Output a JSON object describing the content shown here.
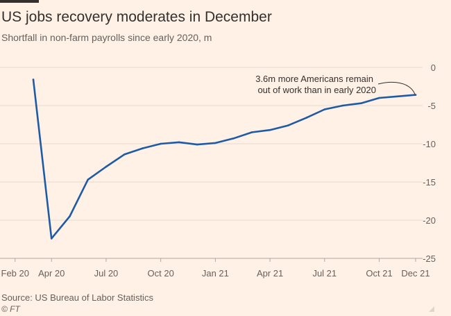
{
  "header": {
    "title": "US jobs recovery moderates in December",
    "subtitle": "Shortfall in non-farm payrolls since early 2020, m"
  },
  "footer": {
    "source": "Source: US Bureau of Labor Statistics",
    "credit": "© FT"
  },
  "annotation": {
    "line1": "3.6m more Americans remain",
    "line2": "out of work than in early 2020"
  },
  "colors": {
    "background": "#fff1e5",
    "line": "#1f5aa6",
    "grid": "#e6d9ce",
    "text": "#33302e",
    "muted": "#66605c"
  },
  "chart_data": {
    "type": "line",
    "title": "US jobs recovery moderates in December",
    "subtitle": "Shortfall in non-farm payrolls since early 2020, m",
    "x": [
      "Mar 20",
      "Apr 20",
      "May 20",
      "Jun 20",
      "Jul 20",
      "Aug 20",
      "Sep 20",
      "Oct 20",
      "Nov 20",
      "Dec 20",
      "Jan 21",
      "Feb 21",
      "Mar 21",
      "Apr 21",
      "May 21",
      "Jun 21",
      "Jul 21",
      "Aug 21",
      "Sep 21",
      "Oct 21",
      "Nov 21",
      "Dec 21"
    ],
    "series": [
      {
        "values": [
          -1.6,
          -22.4,
          -19.5,
          -14.7,
          -13.0,
          -11.4,
          -10.6,
          -10.0,
          -9.8,
          -10.1,
          -9.9,
          -9.3,
          -8.5,
          -8.2,
          -7.6,
          -6.6,
          -5.5,
          -5.0,
          -4.7,
          -4.0,
          -3.8,
          -3.6
        ]
      }
    ],
    "xticks": [
      "Feb 20",
      "Apr 20",
      "Jul 20",
      "Oct 20",
      "Jan 21",
      "Apr 21",
      "Jul 21",
      "Oct 21",
      "Dec 21"
    ],
    "yticks": [
      0,
      -5,
      -10,
      -15,
      -20,
      -25
    ],
    "ylim": [
      -25,
      0
    ],
    "xlabel": "",
    "ylabel": "",
    "grid": true,
    "legend": "none"
  }
}
